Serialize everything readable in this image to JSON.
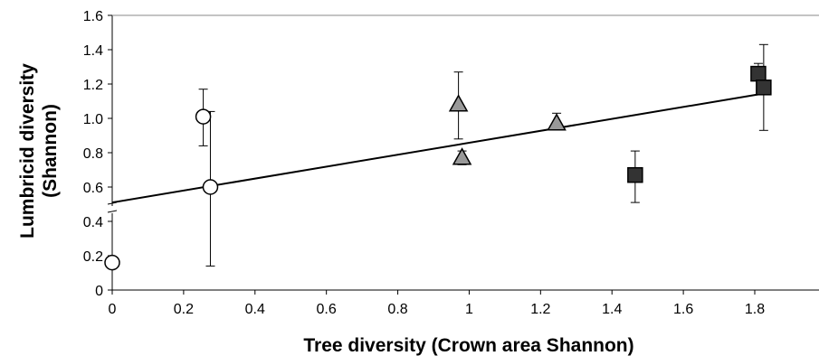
{
  "chart_data": {
    "type": "scatter",
    "title": "",
    "xlabel": "Tree diversity (Crown area Shannon)",
    "ylabel_line1": "Lumbricid diversity",
    "ylabel_line2": "(Shannon)",
    "xlim": [
      0,
      1.98
    ],
    "ylim": [
      0,
      1.6
    ],
    "x_ticks": [
      0,
      0.2,
      0.4,
      0.6,
      0.8,
      1,
      1.2,
      1.4,
      1.6,
      1.8
    ],
    "x_tick_labels": [
      "0",
      "0.2",
      "0.4",
      "0.6",
      "0.8",
      "1",
      "1.2",
      "1.4",
      "1.6",
      "1.8"
    ],
    "y_ticks": [
      0,
      0.2,
      0.4,
      0.6,
      0.8,
      1.0,
      1.2,
      1.4,
      1.6
    ],
    "y_tick_labels": [
      "0",
      "0.2",
      "0.4",
      "0.6",
      "0.8",
      "1.0",
      "1.2",
      "1.4",
      "1.6"
    ],
    "grid": false,
    "colors": {
      "circle_fill": "#ffffff",
      "triangle_fill": "#999999",
      "square_fill": "#333333",
      "stroke": "#000000"
    },
    "series": [
      {
        "marker": "circle",
        "points": [
          {
            "x": 0.0,
            "y": 0.16
          },
          {
            "x": 0.255,
            "y": 1.01,
            "err_low": 0.84,
            "err_high": 1.17
          },
          {
            "x": 0.275,
            "y": 0.6,
            "err_low": 0.14,
            "err_high": 1.04
          }
        ]
      },
      {
        "marker": "triangle",
        "points": [
          {
            "x": 0.97,
            "y": 1.08,
            "err_low": 0.88,
            "err_high": 1.27
          },
          {
            "x": 0.98,
            "y": 0.77,
            "err_low": 0.73,
            "err_high": 0.81
          },
          {
            "x": 1.245,
            "y": 0.97,
            "err_low": 0.94,
            "err_high": 1.03
          }
        ]
      },
      {
        "marker": "square",
        "points": [
          {
            "x": 1.465,
            "y": 0.67,
            "err_low": 0.51,
            "err_high": 0.81
          },
          {
            "x": 1.81,
            "y": 1.26,
            "err_low": 1.22,
            "err_high": 1.32
          },
          {
            "x": 1.825,
            "y": 1.18,
            "err_low": 0.93,
            "err_high": 1.43
          }
        ]
      }
    ],
    "trendline": {
      "x": [
        0,
        1.84
      ],
      "y": [
        0.51,
        1.15
      ]
    }
  }
}
